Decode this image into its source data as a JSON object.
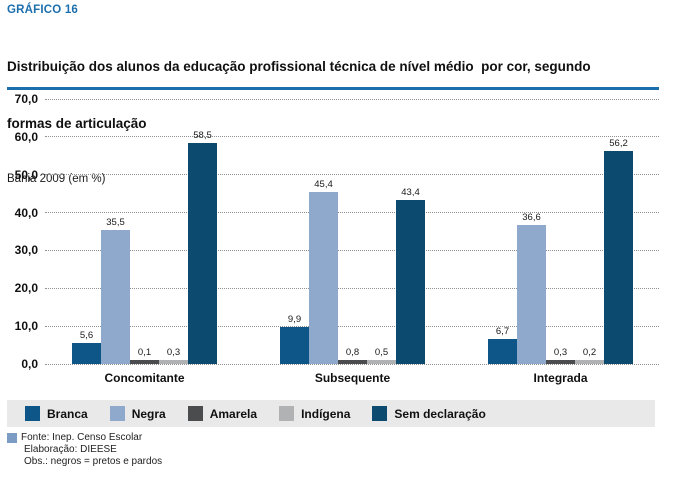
{
  "header": {
    "kicker": "GRÁFICO 16",
    "title_lines": [
      "Distribuição dos alunos da educação profissional técnica de nível médio  por cor, segundo",
      "formas de articulação"
    ],
    "subtitle": "Bahia 2009 (em %)"
  },
  "chart_data": {
    "type": "bar",
    "categories": [
      "Concomitante",
      "Subsequente",
      "Integrada"
    ],
    "series": [
      {
        "name": "Branca",
        "color": "#0e5687",
        "values": [
          5.6,
          9.9,
          6.7
        ],
        "labels": [
          "5,6",
          "9,9",
          "6,7"
        ]
      },
      {
        "name": "Negra",
        "color": "#8fa9cc",
        "values": [
          35.5,
          45.4,
          36.6
        ],
        "labels": [
          "35,5",
          "45,4",
          "36,6"
        ]
      },
      {
        "name": "Amarela",
        "color": "#4b4c4e",
        "values": [
          0.1,
          0.8,
          0.3
        ],
        "labels": [
          "0,1",
          "0,8",
          "0,3"
        ]
      },
      {
        "name": "Indígena",
        "color": "#b0b2b4",
        "values": [
          0.3,
          0.5,
          0.2
        ],
        "labels": [
          "0,3",
          "0,5",
          "0,2"
        ]
      },
      {
        "name": "Sem declaração",
        "color": "#0d4a6f",
        "values": [
          58.5,
          43.4,
          56.2
        ],
        "labels": [
          "58,5",
          "43,4",
          "56,2"
        ]
      }
    ],
    "ylim": [
      0,
      70
    ],
    "ytick_step": 10,
    "ytick_labels": [
      "70,0",
      "60,0",
      "50,0",
      "40,0",
      "30,0",
      "20,0",
      "10,0",
      "0,0"
    ],
    "grid": true,
    "legend_position": "bottom"
  },
  "footer": {
    "source": "Fonte: Inep. Censo Escolar",
    "elaboration": "Elaboração: DIEESE",
    "note": "Obs.: negros = pretos e pardos"
  },
  "colors": {
    "accent": "#1b6fad",
    "legend_bg": "#e9e9e9",
    "footer_marker": "#7d9cc3"
  }
}
